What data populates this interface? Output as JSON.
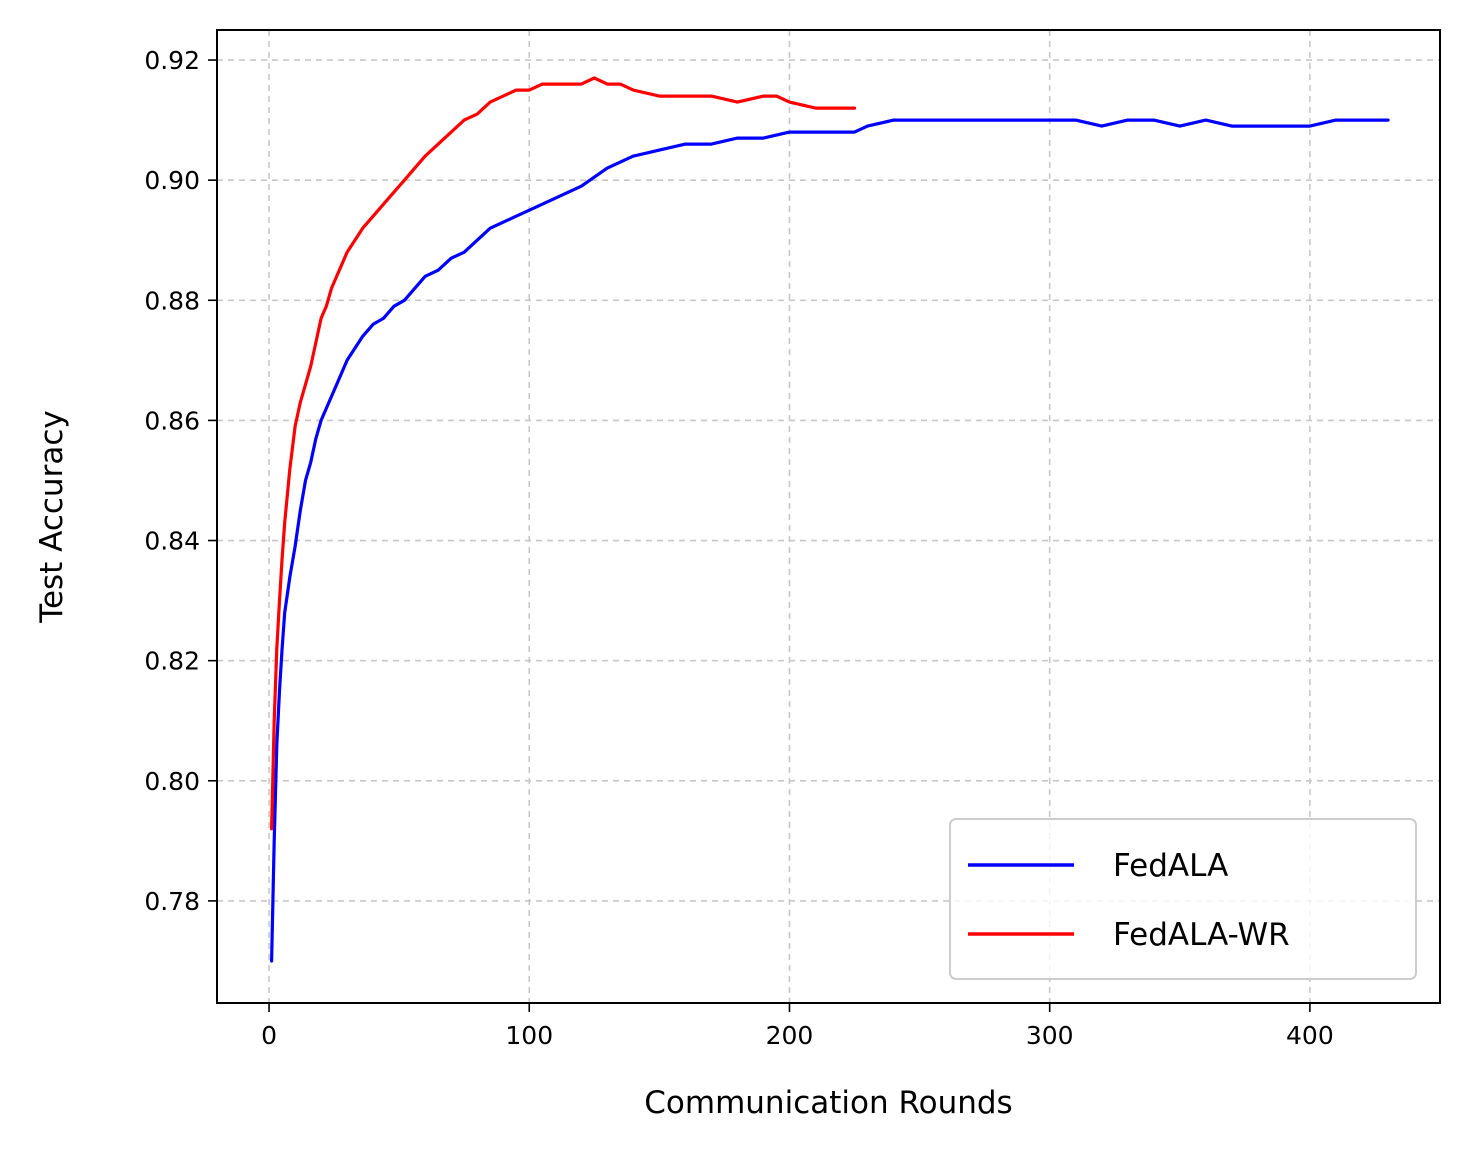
{
  "chart_data": {
    "type": "line",
    "title": "",
    "xlabel": "Communication Rounds",
    "ylabel": "Test Accuracy",
    "xlim": [
      -20,
      450
    ],
    "ylim": [
      0.763,
      0.925
    ],
    "x_ticks": [
      0,
      100,
      200,
      300,
      400
    ],
    "x_tick_labels": [
      "0",
      "100",
      "200",
      "300",
      "400"
    ],
    "y_ticks": [
      0.78,
      0.8,
      0.82,
      0.84,
      0.86,
      0.88,
      0.9,
      0.92
    ],
    "y_tick_labels": [
      "0.78",
      "0.80",
      "0.82",
      "0.84",
      "0.86",
      "0.88",
      "0.90",
      "0.92"
    ],
    "grid": true,
    "legend_position": "bottom-right",
    "series": [
      {
        "name": "FedALA",
        "color": "#0000ff",
        "x": [
          1,
          2,
          3,
          4,
          5,
          6,
          8,
          10,
          12,
          14,
          16,
          18,
          20,
          22,
          24,
          26,
          28,
          30,
          33,
          36,
          40,
          44,
          48,
          52,
          56,
          60,
          65,
          70,
          75,
          80,
          85,
          90,
          95,
          100,
          110,
          120,
          130,
          140,
          150,
          160,
          170,
          180,
          190,
          200,
          210,
          220,
          225,
          230,
          240,
          250,
          260,
          270,
          280,
          290,
          300,
          310,
          320,
          330,
          340,
          350,
          360,
          370,
          380,
          390,
          400,
          410,
          420,
          430
        ],
        "y": [
          0.77,
          0.79,
          0.806,
          0.815,
          0.822,
          0.828,
          0.834,
          0.839,
          0.845,
          0.85,
          0.853,
          0.857,
          0.86,
          0.862,
          0.864,
          0.866,
          0.868,
          0.87,
          0.872,
          0.874,
          0.876,
          0.877,
          0.879,
          0.88,
          0.882,
          0.884,
          0.885,
          0.887,
          0.888,
          0.89,
          0.892,
          0.893,
          0.894,
          0.895,
          0.897,
          0.899,
          0.902,
          0.904,
          0.905,
          0.906,
          0.906,
          0.907,
          0.907,
          0.908,
          0.908,
          0.908,
          0.908,
          0.909,
          0.91,
          0.91,
          0.91,
          0.91,
          0.91,
          0.91,
          0.91,
          0.91,
          0.909,
          0.91,
          0.91,
          0.909,
          0.91,
          0.909,
          0.909,
          0.909,
          0.909,
          0.91,
          0.91,
          0.91
        ]
      },
      {
        "name": "FedALA-WR",
        "color": "#ff0000",
        "x": [
          1,
          2,
          3,
          4,
          5,
          6,
          8,
          10,
          12,
          14,
          16,
          18,
          20,
          22,
          24,
          26,
          28,
          30,
          33,
          36,
          40,
          44,
          48,
          52,
          56,
          60,
          65,
          70,
          75,
          80,
          85,
          90,
          95,
          100,
          105,
          110,
          115,
          120,
          125,
          130,
          135,
          140,
          150,
          160,
          170,
          180,
          190,
          195,
          200,
          210,
          220,
          225
        ],
        "y": [
          0.792,
          0.81,
          0.822,
          0.83,
          0.837,
          0.843,
          0.852,
          0.859,
          0.863,
          0.866,
          0.869,
          0.873,
          0.877,
          0.879,
          0.882,
          0.884,
          0.886,
          0.888,
          0.89,
          0.892,
          0.894,
          0.896,
          0.898,
          0.9,
          0.902,
          0.904,
          0.906,
          0.908,
          0.91,
          0.911,
          0.913,
          0.914,
          0.915,
          0.915,
          0.916,
          0.916,
          0.916,
          0.916,
          0.917,
          0.916,
          0.916,
          0.915,
          0.914,
          0.914,
          0.914,
          0.913,
          0.914,
          0.914,
          0.913,
          0.912,
          0.912,
          0.912
        ]
      }
    ]
  }
}
